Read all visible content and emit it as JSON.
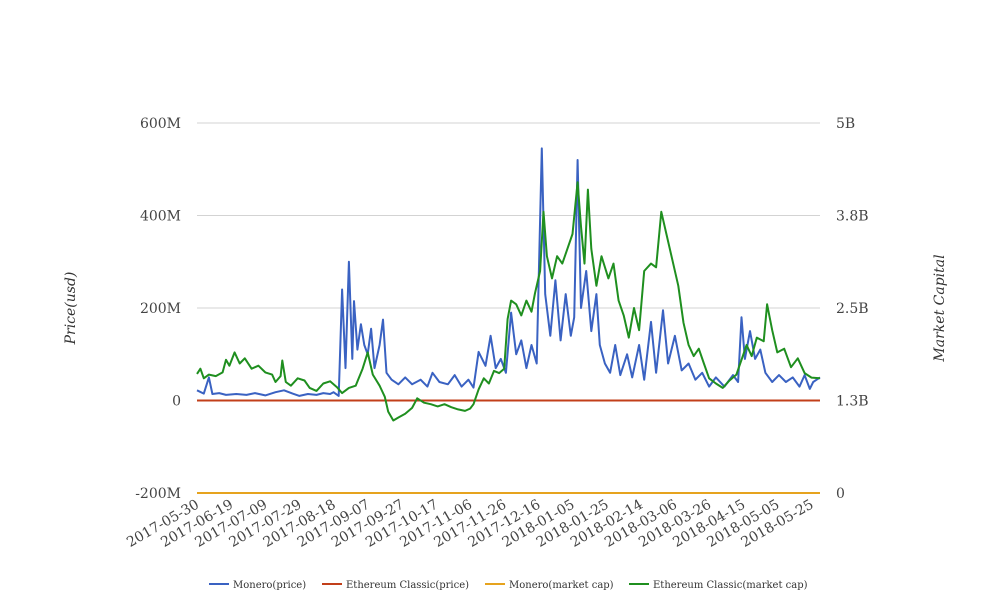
{
  "chart_data": {
    "type": "line",
    "title": "",
    "y_left_label": "Price(usd)",
    "y_right_label": "Market Capital",
    "y_left_ticks": [
      "600M",
      "400M",
      "200M",
      "0",
      "-200M"
    ],
    "y_left_tick_values": [
      600,
      400,
      200,
      0,
      -200
    ],
    "y_right_ticks": [
      "5B",
      "3.8B",
      "2.5B",
      "1.3B",
      "0"
    ],
    "y_right_tick_values": [
      5,
      3.75,
      2.5,
      1.25,
      0
    ],
    "y_left_range": [
      -200,
      600
    ],
    "y_right_range": [
      0,
      5
    ],
    "x_tick_labels": [
      "2017-05-30",
      "2017-06-19",
      "2017-07-09",
      "2017-07-29",
      "2017-08-18",
      "2017-09-07",
      "2017-09-27",
      "2017-10-17",
      "2017-11-06",
      "2017-11-26",
      "2017-12-16",
      "2018-01-05",
      "2018-01-25",
      "2018-02-14",
      "2018-03-06",
      "2018-03-26",
      "2018-04-15",
      "2018-05-05",
      "2018-05-25"
    ],
    "x_start_date": "2017-05-30",
    "x_end_date": "2018-05-30",
    "x_tick_interval_days": 20,
    "grid": true,
    "legend_position": "bottom",
    "series": [
      {
        "name": "Monero(price)",
        "color": "#3a62c2",
        "axis": "left",
        "points": [
          [
            "2017-05-30",
            22
          ],
          [
            "2017-06-03",
            15
          ],
          [
            "2017-06-06",
            50
          ],
          [
            "2017-06-08",
            14
          ],
          [
            "2017-06-12",
            16
          ],
          [
            "2017-06-16",
            12
          ],
          [
            "2017-06-22",
            14
          ],
          [
            "2017-06-28",
            12
          ],
          [
            "2017-07-03",
            16
          ],
          [
            "2017-07-09",
            11
          ],
          [
            "2017-07-15",
            18
          ],
          [
            "2017-07-20",
            22
          ],
          [
            "2017-07-25",
            15
          ],
          [
            "2017-07-29",
            10
          ],
          [
            "2017-08-03",
            14
          ],
          [
            "2017-08-08",
            12
          ],
          [
            "2017-08-12",
            16
          ],
          [
            "2017-08-16",
            14
          ],
          [
            "2017-08-18",
            18
          ],
          [
            "2017-08-21",
            10
          ],
          [
            "2017-08-23",
            240
          ],
          [
            "2017-08-25",
            70
          ],
          [
            "2017-08-27",
            300
          ],
          [
            "2017-08-29",
            90
          ],
          [
            "2017-08-30",
            215
          ],
          [
            "2017-09-01",
            110
          ],
          [
            "2017-09-03",
            165
          ],
          [
            "2017-09-05",
            120
          ],
          [
            "2017-09-07",
            100
          ],
          [
            "2017-09-09",
            155
          ],
          [
            "2017-09-11",
            70
          ],
          [
            "2017-09-14",
            120
          ],
          [
            "2017-09-16",
            175
          ],
          [
            "2017-09-18",
            60
          ],
          [
            "2017-09-21",
            45
          ],
          [
            "2017-09-25",
            35
          ],
          [
            "2017-09-29",
            50
          ],
          [
            "2017-10-03",
            35
          ],
          [
            "2017-10-08",
            45
          ],
          [
            "2017-10-12",
            30
          ],
          [
            "2017-10-15",
            60
          ],
          [
            "2017-10-19",
            40
          ],
          [
            "2017-10-24",
            35
          ],
          [
            "2017-10-28",
            55
          ],
          [
            "2017-11-01",
            30
          ],
          [
            "2017-11-05",
            45
          ],
          [
            "2017-11-08",
            28
          ],
          [
            "2017-11-11",
            105
          ],
          [
            "2017-11-15",
            75
          ],
          [
            "2017-11-18",
            140
          ],
          [
            "2017-11-21",
            70
          ],
          [
            "2017-11-24",
            90
          ],
          [
            "2017-11-27",
            60
          ],
          [
            "2017-11-30",
            190
          ],
          [
            "2017-12-03",
            100
          ],
          [
            "2017-12-06",
            130
          ],
          [
            "2017-12-09",
            70
          ],
          [
            "2017-12-12",
            120
          ],
          [
            "2017-12-15",
            80
          ],
          [
            "2017-12-18",
            545
          ],
          [
            "2017-12-20",
            230
          ],
          [
            "2017-12-23",
            140
          ],
          [
            "2017-12-26",
            260
          ],
          [
            "2017-12-29",
            130
          ],
          [
            "2018-01-01",
            230
          ],
          [
            "2018-01-04",
            140
          ],
          [
            "2018-01-06",
            180
          ],
          [
            "2018-01-08",
            520
          ],
          [
            "2018-01-10",
            200
          ],
          [
            "2018-01-13",
            280
          ],
          [
            "2018-01-16",
            150
          ],
          [
            "2018-01-19",
            230
          ],
          [
            "2018-01-21",
            120
          ],
          [
            "2018-01-24",
            80
          ],
          [
            "2018-01-27",
            60
          ],
          [
            "2018-01-30",
            120
          ],
          [
            "2018-02-02",
            55
          ],
          [
            "2018-02-06",
            100
          ],
          [
            "2018-02-09",
            50
          ],
          [
            "2018-02-13",
            120
          ],
          [
            "2018-02-16",
            45
          ],
          [
            "2018-02-20",
            170
          ],
          [
            "2018-02-23",
            60
          ],
          [
            "2018-02-27",
            195
          ],
          [
            "2018-03-02",
            80
          ],
          [
            "2018-03-06",
            140
          ],
          [
            "2018-03-10",
            65
          ],
          [
            "2018-03-14",
            80
          ],
          [
            "2018-03-18",
            45
          ],
          [
            "2018-03-22",
            60
          ],
          [
            "2018-03-26",
            30
          ],
          [
            "2018-03-30",
            50
          ],
          [
            "2018-04-04",
            30
          ],
          [
            "2018-04-09",
            55
          ],
          [
            "2018-04-12",
            40
          ],
          [
            "2018-04-14",
            180
          ],
          [
            "2018-04-16",
            90
          ],
          [
            "2018-04-19",
            150
          ],
          [
            "2018-04-22",
            90
          ],
          [
            "2018-04-25",
            110
          ],
          [
            "2018-04-28",
            60
          ],
          [
            "2018-05-02",
            40
          ],
          [
            "2018-05-06",
            55
          ],
          [
            "2018-05-10",
            40
          ],
          [
            "2018-05-14",
            50
          ],
          [
            "2018-05-18",
            30
          ],
          [
            "2018-05-21",
            55
          ],
          [
            "2018-05-24",
            25
          ],
          [
            "2018-05-26",
            40
          ],
          [
            "2018-05-30",
            50
          ]
        ]
      },
      {
        "name": "Ethereum Classic(price)",
        "color": "#c23f1a",
        "axis": "left",
        "points": [
          [
            "2017-05-30",
            0
          ],
          [
            "2018-05-30",
            0
          ]
        ]
      },
      {
        "name": "Monero(market cap)",
        "color": "#e6a31e",
        "axis": "right",
        "points": [
          [
            "2017-05-30",
            0
          ],
          [
            "2018-05-30",
            0
          ]
        ]
      },
      {
        "name": "Ethereum Classic(market cap)",
        "color": "#1f8f1f",
        "axis": "right",
        "points": [
          [
            "2017-05-30",
            1.61
          ],
          [
            "2017-06-01",
            1.68
          ],
          [
            "2017-06-03",
            1.55
          ],
          [
            "2017-06-06",
            1.6
          ],
          [
            "2017-06-10",
            1.58
          ],
          [
            "2017-06-14",
            1.63
          ],
          [
            "2017-06-16",
            1.8
          ],
          [
            "2017-06-18",
            1.72
          ],
          [
            "2017-06-21",
            1.9
          ],
          [
            "2017-06-24",
            1.75
          ],
          [
            "2017-06-27",
            1.82
          ],
          [
            "2017-07-01",
            1.68
          ],
          [
            "2017-07-05",
            1.72
          ],
          [
            "2017-07-09",
            1.63
          ],
          [
            "2017-07-13",
            1.6
          ],
          [
            "2017-07-15",
            1.5
          ],
          [
            "2017-07-18",
            1.58
          ],
          [
            "2017-07-19",
            1.79
          ],
          [
            "2017-07-21",
            1.5
          ],
          [
            "2017-07-24",
            1.45
          ],
          [
            "2017-07-28",
            1.55
          ],
          [
            "2017-08-01",
            1.52
          ],
          [
            "2017-08-04",
            1.42
          ],
          [
            "2017-08-08",
            1.38
          ],
          [
            "2017-08-12",
            1.48
          ],
          [
            "2017-08-16",
            1.51
          ],
          [
            "2017-08-20",
            1.43
          ],
          [
            "2017-08-23",
            1.35
          ],
          [
            "2017-08-27",
            1.42
          ],
          [
            "2017-08-31",
            1.45
          ],
          [
            "2017-09-04",
            1.68
          ],
          [
            "2017-09-07",
            1.9
          ],
          [
            "2017-09-10",
            1.6
          ],
          [
            "2017-09-14",
            1.45
          ],
          [
            "2017-09-17",
            1.3
          ],
          [
            "2017-09-19",
            1.1
          ],
          [
            "2017-09-22",
            0.98
          ],
          [
            "2017-09-25",
            1.02
          ],
          [
            "2017-09-29",
            1.07
          ],
          [
            "2017-10-03",
            1.15
          ],
          [
            "2017-10-06",
            1.28
          ],
          [
            "2017-10-10",
            1.22
          ],
          [
            "2017-10-14",
            1.2
          ],
          [
            "2017-10-18",
            1.17
          ],
          [
            "2017-10-22",
            1.2
          ],
          [
            "2017-10-26",
            1.16
          ],
          [
            "2017-10-30",
            1.13
          ],
          [
            "2017-11-03",
            1.11
          ],
          [
            "2017-11-06",
            1.14
          ],
          [
            "2017-11-08",
            1.2
          ],
          [
            "2017-11-11",
            1.4
          ],
          [
            "2017-11-14",
            1.55
          ],
          [
            "2017-11-17",
            1.48
          ],
          [
            "2017-11-20",
            1.65
          ],
          [
            "2017-11-23",
            1.62
          ],
          [
            "2017-11-26",
            1.68
          ],
          [
            "2017-11-28",
            2.35
          ],
          [
            "2017-11-30",
            2.6
          ],
          [
            "2017-12-03",
            2.55
          ],
          [
            "2017-12-06",
            2.4
          ],
          [
            "2017-12-09",
            2.6
          ],
          [
            "2017-12-12",
            2.45
          ],
          [
            "2017-12-14",
            2.7
          ],
          [
            "2017-12-17",
            3.0
          ],
          [
            "2017-12-19",
            3.8
          ],
          [
            "2017-12-21",
            3.2
          ],
          [
            "2017-12-24",
            2.9
          ],
          [
            "2017-12-27",
            3.2
          ],
          [
            "2017-12-30",
            3.1
          ],
          [
            "2018-01-02",
            3.3
          ],
          [
            "2018-01-05",
            3.5
          ],
          [
            "2018-01-08",
            4.2
          ],
          [
            "2018-01-10",
            3.6
          ],
          [
            "2018-01-12",
            3.1
          ],
          [
            "2018-01-14",
            4.1
          ],
          [
            "2018-01-16",
            3.3
          ],
          [
            "2018-01-19",
            2.8
          ],
          [
            "2018-01-22",
            3.2
          ],
          [
            "2018-01-26",
            2.9
          ],
          [
            "2018-01-29",
            3.1
          ],
          [
            "2018-02-01",
            2.6
          ],
          [
            "2018-02-04",
            2.4
          ],
          [
            "2018-02-07",
            2.1
          ],
          [
            "2018-02-10",
            2.5
          ],
          [
            "2018-02-13",
            2.2
          ],
          [
            "2018-02-16",
            3.0
          ],
          [
            "2018-02-20",
            3.1
          ],
          [
            "2018-02-23",
            3.05
          ],
          [
            "2018-02-26",
            3.8
          ],
          [
            "2018-03-01",
            3.5
          ],
          [
            "2018-03-04",
            3.2
          ],
          [
            "2018-03-08",
            2.8
          ],
          [
            "2018-03-11",
            2.3
          ],
          [
            "2018-03-14",
            2.0
          ],
          [
            "2018-03-17",
            1.85
          ],
          [
            "2018-03-20",
            1.95
          ],
          [
            "2018-03-23",
            1.75
          ],
          [
            "2018-03-26",
            1.55
          ],
          [
            "2018-03-30",
            1.48
          ],
          [
            "2018-04-03",
            1.42
          ],
          [
            "2018-04-07",
            1.52
          ],
          [
            "2018-04-11",
            1.6
          ],
          [
            "2018-04-14",
            1.8
          ],
          [
            "2018-04-17",
            2.0
          ],
          [
            "2018-04-20",
            1.85
          ],
          [
            "2018-04-23",
            2.1
          ],
          [
            "2018-04-27",
            2.05
          ],
          [
            "2018-04-29",
            2.55
          ],
          [
            "2018-05-02",
            2.2
          ],
          [
            "2018-05-05",
            1.9
          ],
          [
            "2018-05-09",
            1.95
          ],
          [
            "2018-05-13",
            1.7
          ],
          [
            "2018-05-17",
            1.82
          ],
          [
            "2018-05-21",
            1.62
          ],
          [
            "2018-05-25",
            1.56
          ],
          [
            "2018-05-30",
            1.55
          ]
        ]
      }
    ]
  }
}
